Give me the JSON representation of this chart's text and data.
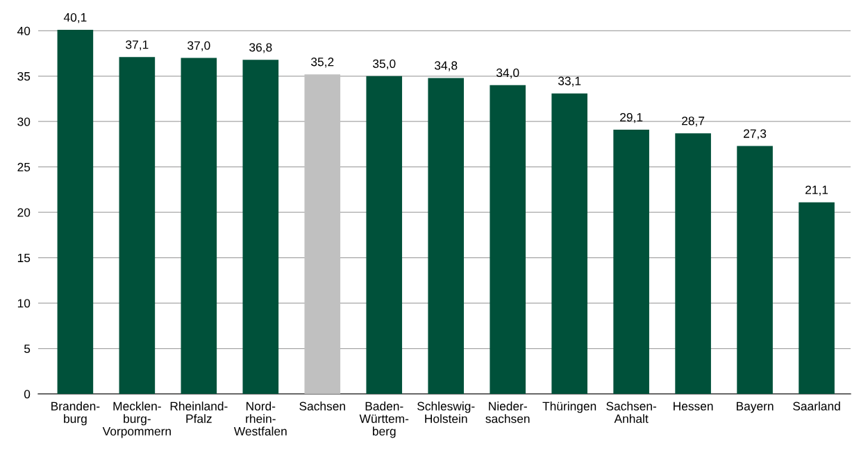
{
  "chart_data": {
    "type": "bar",
    "categories": [
      "Branden-\nburg",
      "Mecklen-\nburg-\nVorpommern",
      "Rheinland-\nPfalz",
      "Nord-\nrhein-\nWestfalen",
      "Sachsen",
      "Baden-\nWürttem-\nberg",
      "Schleswig-\nHolstein",
      "Nieder-\nsachsen",
      "Thüringen",
      "Sachsen-\nAnhalt",
      "Hessen",
      "Bayern",
      "Saarland"
    ],
    "values": [
      40.1,
      37.1,
      37.0,
      36.8,
      35.2,
      35.0,
      34.8,
      34.0,
      33.1,
      29.1,
      28.7,
      27.3,
      21.1
    ],
    "value_labels": [
      "40,1",
      "37,1",
      "37,0",
      "36,8",
      "35,2",
      "35,0",
      "34,8",
      "34,0",
      "33,1",
      "29,1",
      "28,7",
      "27,3",
      "21,1"
    ],
    "colors": [
      "#00513a",
      "#00513a",
      "#00513a",
      "#00513a",
      "#c0c0c0",
      "#00513a",
      "#00513a",
      "#00513a",
      "#00513a",
      "#00513a",
      "#00513a",
      "#00513a",
      "#00513a"
    ],
    "ylim": [
      0,
      40.1
    ],
    "yticks": [
      0,
      5,
      10,
      15,
      20,
      25,
      30,
      35,
      40
    ],
    "grid": "y"
  }
}
